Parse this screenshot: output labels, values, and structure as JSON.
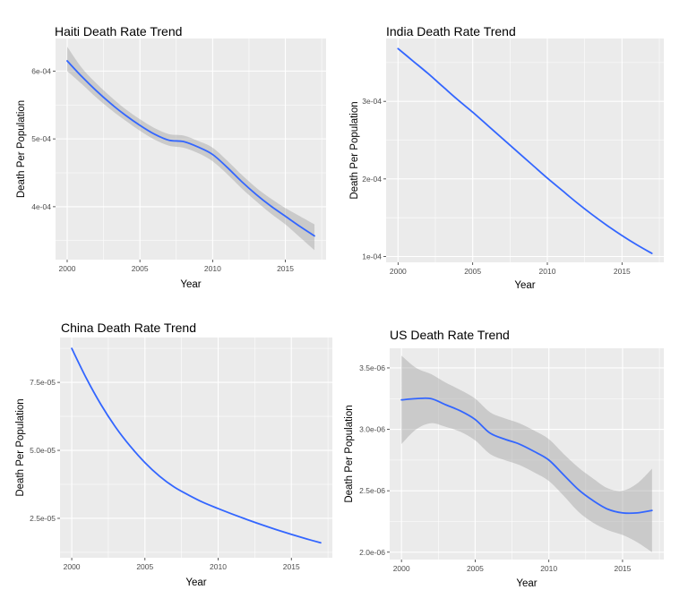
{
  "chart_data": [
    {
      "type": "line",
      "title": "Haiti Death Rate Trend",
      "xlabel": "Year",
      "ylabel": "Death Per Population",
      "xlim": [
        1999.2,
        2017.8
      ],
      "ylim": [
        0.000322,
        0.000648
      ],
      "xticks": [
        2000,
        2005,
        2010,
        2015
      ],
      "xtick_labels": [
        "2000",
        "2005",
        "2010",
        "2015"
      ],
      "yticks": [
        0.0004,
        0.0005,
        0.0006
      ],
      "ytick_labels": [
        "4e-04",
        "5e-04",
        "6e-04"
      ],
      "grid": true,
      "confidence_band": true,
      "colors": {
        "line": "#3366ff",
        "band": "#999999",
        "panel": "#ebebeb"
      },
      "series": [
        {
          "x": [
            2000,
            2001,
            2002,
            2003,
            2004,
            2005,
            2006,
            2007,
            2008,
            2009,
            2010,
            2011,
            2012,
            2013,
            2014,
            2015,
            2016,
            2017
          ],
          "y": [
            0.000615,
            0.000592,
            0.000571,
            0.000552,
            0.000535,
            0.00052,
            0.000507,
            0.000498,
            0.000496,
            0.000488,
            0.000477,
            0.000458,
            0.000437,
            0.000418,
            0.000401,
            0.000386,
            0.000371,
            0.000357
          ],
          "lower": [
            0.0006,
            0.000581,
            0.000561,
            0.000543,
            0.000527,
            0.000512,
            0.000499,
            0.00049,
            0.000487,
            0.000479,
            0.000467,
            0.000448,
            0.000427,
            0.000408,
            0.00039,
            0.000374,
            0.000355,
            0.000336
          ],
          "upper": [
            0.000636,
            0.000605,
            0.000582,
            0.000562,
            0.000544,
            0.000529,
            0.000516,
            0.000507,
            0.000505,
            0.000497,
            0.000487,
            0.000468,
            0.000447,
            0.000428,
            0.000412,
            0.000398,
            0.000386,
            0.000374
          ]
        }
      ]
    },
    {
      "type": "line",
      "title": "India Death Rate Trend",
      "xlabel": "Year",
      "ylabel": "Death Per Population",
      "xlim": [
        1999.2,
        2017.8
      ],
      "ylim": [
        9.25e-05,
        0.000381
      ],
      "xticks": [
        2000,
        2005,
        2010,
        2015
      ],
      "xtick_labels": [
        "2000",
        "2005",
        "2010",
        "2015"
      ],
      "yticks": [
        0.0001,
        0.0002,
        0.0003
      ],
      "ytick_labels": [
        "1e-04",
        "2e-04",
        "3e-04"
      ],
      "grid": true,
      "confidence_band": false,
      "colors": {
        "line": "#3366ff",
        "panel": "#ebebeb"
      },
      "series": [
        {
          "x": [
            2000,
            2001,
            2002,
            2003,
            2004,
            2005,
            2006,
            2007,
            2008,
            2009,
            2010,
            2011,
            2012,
            2013,
            2014,
            2015,
            2016,
            2017
          ],
          "y": [
            0.000368,
            0.000352,
            0.000336,
            0.000319,
            0.000302,
            0.000286,
            0.000269,
            0.000252,
            0.000235,
            0.000218,
            0.000201,
            0.000185,
            0.000169,
            0.000154,
            0.00014,
            0.000127,
            0.000115,
            0.000104
          ]
        }
      ]
    },
    {
      "type": "line",
      "title": "China Death Rate Trend",
      "xlabel": "Year",
      "ylabel": "Death Per Population",
      "xlim": [
        1999.2,
        2017.8
      ],
      "ylim": [
        1.05e-05,
        9.15e-05
      ],
      "xticks": [
        2000,
        2005,
        2010,
        2015
      ],
      "xtick_labels": [
        "2000",
        "2005",
        "2010",
        "2015"
      ],
      "yticks": [
        2.5e-05,
        5e-05,
        7.5e-05
      ],
      "ytick_labels": [
        "2.5e-05",
        "5.0e-05",
        "7.5e-05"
      ],
      "grid": true,
      "confidence_band": false,
      "colors": {
        "line": "#3366ff",
        "panel": "#ebebeb"
      },
      "series": [
        {
          "x": [
            2000,
            2001,
            2002,
            2003,
            2004,
            2005,
            2006,
            2007,
            2008,
            2009,
            2010,
            2011,
            2012,
            2013,
            2014,
            2015,
            2016,
            2017
          ],
          "y": [
            8.75e-05,
            7.65e-05,
            6.68e-05,
            5.85e-05,
            5.15e-05,
            4.55e-05,
            4.05e-05,
            3.65e-05,
            3.35e-05,
            3.08e-05,
            2.86e-05,
            2.65e-05,
            2.45e-05,
            2.26e-05,
            2.08e-05,
            1.91e-05,
            1.75e-05,
            1.6e-05
          ]
        }
      ]
    },
    {
      "type": "line",
      "title": "US Death Rate Trend",
      "xlabel": "Year",
      "ylabel": "Death Per Population",
      "xlim": [
        1999.2,
        2017.8
      ],
      "ylim": [
        1.94e-06,
        3.66e-06
      ],
      "xticks": [
        2000,
        2005,
        2010,
        2015
      ],
      "xtick_labels": [
        "2000",
        "2005",
        "2010",
        "2015"
      ],
      "yticks": [
        2e-06,
        2.5e-06,
        3e-06,
        3.5e-06
      ],
      "ytick_labels": [
        "2.0e-06",
        "2.5e-06",
        "3.0e-06",
        "3.5e-06"
      ],
      "grid": true,
      "confidence_band": true,
      "colors": {
        "line": "#3366ff",
        "band": "#999999",
        "panel": "#ebebeb"
      },
      "series": [
        {
          "x": [
            2000,
            2001,
            2002,
            2003,
            2004,
            2005,
            2006,
            2007,
            2008,
            2009,
            2010,
            2011,
            2012,
            2013,
            2014,
            2015,
            2016,
            2017
          ],
          "y": [
            3.24e-06,
            3.25e-06,
            3.25e-06,
            3.2e-06,
            3.15e-06,
            3.08e-06,
            2.97e-06,
            2.92e-06,
            2.88e-06,
            2.82e-06,
            2.75e-06,
            2.63e-06,
            2.51e-06,
            2.42e-06,
            2.35e-06,
            2.32e-06,
            2.32e-06,
            2.34e-06
          ],
          "lower": [
            2.88e-06,
            3e-06,
            3.05e-06,
            3.02e-06,
            2.98e-06,
            2.91e-06,
            2.8e-06,
            2.75e-06,
            2.71e-06,
            2.65e-06,
            2.58e-06,
            2.46e-06,
            2.33e-06,
            2.24e-06,
            2.18e-06,
            2.14e-06,
            2.08e-06,
            2e-06
          ],
          "upper": [
            3.6e-06,
            3.5e-06,
            3.45e-06,
            3.38e-06,
            3.32e-06,
            3.25e-06,
            3.14e-06,
            3.09e-06,
            3.05e-06,
            2.99e-06,
            2.92e-06,
            2.8e-06,
            2.69e-06,
            2.6e-06,
            2.52e-06,
            2.5e-06,
            2.56e-06,
            2.68e-06
          ]
        }
      ]
    }
  ]
}
